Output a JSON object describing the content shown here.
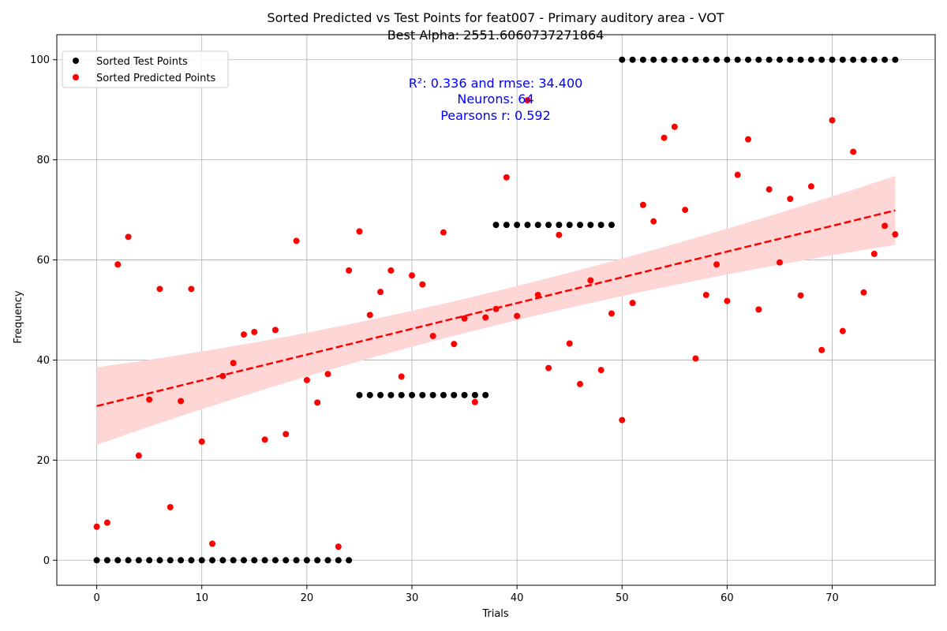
{
  "chart_data": {
    "type": "scatter",
    "title": "Sorted Predicted vs Test Points for feat007 - Primary auditory area - VOT",
    "subtitle": "Best Alpha: 2551.6060737271864",
    "xlabel": "Trials",
    "ylabel": "Frequency",
    "xlim": [
      -3.8,
      79.8
    ],
    "ylim": [
      -5,
      105
    ],
    "xticks": [
      0,
      10,
      20,
      30,
      40,
      50,
      60,
      70
    ],
    "yticks": [
      0,
      20,
      40,
      60,
      80,
      100
    ],
    "grid": true,
    "legend_position": "top-left",
    "annotations": [
      "R²: 0.336 and rmse: 34.400",
      "Neurons: 64",
      "Pearsons r: 0.592"
    ],
    "series": [
      {
        "name": "Sorted Test Points",
        "color": "#000000",
        "x": [
          0,
          1,
          2,
          3,
          4,
          5,
          6,
          7,
          8,
          9,
          10,
          11,
          12,
          13,
          14,
          15,
          16,
          17,
          18,
          19,
          20,
          21,
          22,
          23,
          24,
          25,
          26,
          27,
          28,
          29,
          30,
          31,
          32,
          33,
          34,
          35,
          36,
          37,
          38,
          39,
          40,
          41,
          42,
          43,
          44,
          45,
          46,
          47,
          48,
          49,
          50,
          51,
          52,
          53,
          54,
          55,
          56,
          57,
          58,
          59,
          60,
          61,
          62,
          63,
          64,
          65,
          66,
          67,
          68,
          69,
          70,
          71,
          72,
          73,
          74,
          75,
          76
        ],
        "y": [
          0,
          0,
          0,
          0,
          0,
          0,
          0,
          0,
          0,
          0,
          0,
          0,
          0,
          0,
          0,
          0,
          0,
          0,
          0,
          0,
          0,
          0,
          0,
          0,
          0,
          33,
          33,
          33,
          33,
          33,
          33,
          33,
          33,
          33,
          33,
          33,
          33,
          33,
          67,
          67,
          67,
          67,
          67,
          67,
          67,
          67,
          67,
          67,
          67,
          67,
          100,
          100,
          100,
          100,
          100,
          100,
          100,
          100,
          100,
          100,
          100,
          100,
          100,
          100,
          100,
          100,
          100,
          100,
          100,
          100,
          100,
          100,
          100,
          100,
          100,
          100,
          100
        ]
      },
      {
        "name": "Sorted Predicted Points",
        "color": "#ff0000",
        "x": [
          0,
          1,
          2,
          3,
          4,
          5,
          6,
          7,
          8,
          9,
          10,
          11,
          12,
          13,
          14,
          15,
          16,
          17,
          18,
          19,
          20,
          21,
          22,
          23,
          24,
          25,
          26,
          27,
          28,
          29,
          30,
          31,
          32,
          33,
          34,
          35,
          36,
          37,
          38,
          39,
          40,
          41,
          42,
          43,
          44,
          45,
          46,
          47,
          48,
          49,
          50,
          51,
          52,
          53,
          54,
          55,
          56,
          57,
          58,
          59,
          60,
          61,
          62,
          63,
          64,
          65,
          66,
          67,
          68,
          69,
          70,
          71,
          72,
          73,
          74,
          75,
          76
        ],
        "y": [
          6.7,
          7.5,
          59.1,
          64.6,
          20.9,
          32.1,
          54.2,
          10.6,
          31.8,
          54.2,
          23.7,
          3.3,
          36.8,
          39.4,
          45.1,
          45.6,
          24.1,
          46.0,
          25.2,
          63.8,
          36.0,
          31.5,
          37.2,
          2.7,
          57.9,
          65.7,
          49.0,
          53.6,
          57.9,
          36.7,
          56.9,
          55.1,
          44.8,
          65.5,
          43.2,
          48.3,
          31.6,
          48.5,
          50.2,
          76.5,
          48.8,
          91.9,
          53.0,
          38.4,
          65.0,
          43.3,
          35.2,
          55.9,
          38.0,
          49.3,
          28.0,
          51.4,
          71.0,
          67.7,
          84.4,
          86.6,
          70.0,
          40.3,
          53.0,
          59.1,
          51.8,
          77.0,
          84.1,
          50.1,
          74.1,
          59.5,
          72.2,
          52.9,
          74.7,
          42.0,
          87.9,
          45.8,
          81.6,
          53.5,
          61.2,
          66.8,
          65.1
        ]
      }
    ],
    "regression": {
      "color": "#ff0000",
      "band_color": "#ffd6d6",
      "x_start": 0,
      "x_end": 76,
      "y_start": 30.8,
      "y_end": 69.9,
      "band_lower_start": 23.0,
      "band_upper_start": 38.5,
      "band_lower_end": 63.2,
      "band_upper_end": 77.0
    }
  }
}
